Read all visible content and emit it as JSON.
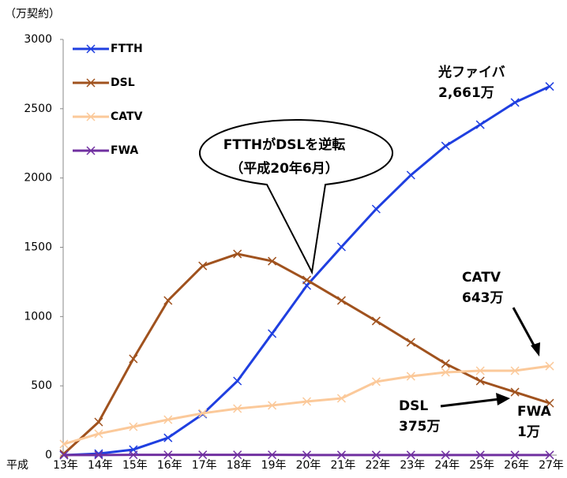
{
  "chart_data": {
    "type": "line",
    "y_unit_label": "（万契約）",
    "x_prefix": "平成",
    "categories": [
      "13年",
      "14年",
      "15年",
      "16年",
      "17年",
      "18年",
      "19年",
      "20年",
      "21年",
      "22年",
      "23年",
      "24年",
      "25年",
      "26年",
      "27年"
    ],
    "series": [
      {
        "name": "FTTH",
        "color": "#1f3fe0",
        "values": [
          0,
          11,
          40,
          125,
          296,
          535,
          877,
          1224,
          1503,
          1776,
          2021,
          2231,
          2385,
          2545,
          2661
        ]
      },
      {
        "name": "DSL",
        "color": "#a0521e",
        "values": [
          10,
          239,
          695,
          1116,
          1366,
          1452,
          1400,
          1264,
          1116,
          968,
          814,
          660,
          535,
          455,
          375
        ]
      },
      {
        "name": "CATV",
        "color": "#fbc99a",
        "values": [
          80,
          154,
          205,
          256,
          302,
          336,
          359,
          387,
          410,
          530,
          569,
          598,
          609,
          609,
          643
        ]
      },
      {
        "name": "FWA",
        "color": "#7030a0",
        "values": [
          1,
          1,
          2,
          2,
          2,
          2,
          2,
          1,
          1,
          1,
          1,
          1,
          1,
          1,
          1
        ]
      }
    ],
    "ylim": [
      0,
      3000
    ],
    "yticks": [
      0,
      500,
      1000,
      1500,
      2000,
      2500,
      3000
    ],
    "callout": [
      "FTTHがDSLを逆転",
      "（平成20年6月）"
    ],
    "annotations": [
      [
        "光ファイバ",
        "2,661万"
      ],
      [
        "CATV",
        "643万"
      ],
      [
        "DSL",
        "375万"
      ],
      [
        "FWA",
        "1万"
      ]
    ]
  }
}
